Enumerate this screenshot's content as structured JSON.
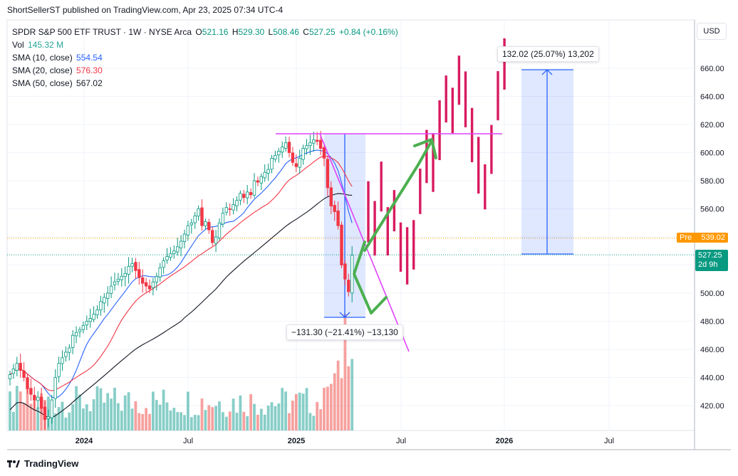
{
  "publisher_line": "ShortSellerST published on TradingView.com, Apr 23, 2025 07:34 UTC-4",
  "header": {
    "symbol": "SPDR S&P 500 ETF TRUST · 1W · NYSE Arca",
    "o_label": "O",
    "o": "521.16",
    "h_label": "H",
    "h": "529.30",
    "l_label": "L",
    "l": "508.46",
    "c_label": "C",
    "c": "527.25",
    "change": "+0.84 (+0.16%)"
  },
  "indicators": [
    {
      "label": "Vol",
      "value": "145.32 M",
      "color": "#26a69a"
    },
    {
      "label": "SMA (10, close)",
      "value": "554.54",
      "color": "#2962ff"
    },
    {
      "label": "SMA (20, close)",
      "value": "576.30",
      "color": "#f23645"
    },
    {
      "label": "SMA (50, close)",
      "value": "567.02",
      "color": "#131722"
    }
  ],
  "currency_button": "USD",
  "price_tags": {
    "pre_label": "Pre",
    "pre_value": "539.02",
    "pre_color": "#ff9800",
    "last_value": "527.25",
    "last_countdown": "2d 9h",
    "last_color": "#089981"
  },
  "measures": [
    {
      "text": "132.02 (25.07%) 13,202"
    },
    {
      "text": "−131.30 (−21.41%) −13,130"
    }
  ],
  "footer_brand": "TradingView",
  "colors": {
    "up": "#26a69a",
    "down": "#ef5350",
    "projection": "#d81b60",
    "trend": "#e040fb",
    "arrow": "#4caf50",
    "box": "#dbe4fb",
    "box_line": "#2962ff"
  },
  "chart_data": {
    "type": "candlestick",
    "timeframe": "1W",
    "y_axis": {
      "ticks": [
        420,
        440,
        460,
        480,
        500,
        520,
        540,
        560,
        580,
        600,
        620,
        640,
        660
      ],
      "range": [
        400,
        676
      ]
    },
    "x_axis": {
      "ticks": [
        "2024",
        "Jul",
        "2025",
        "Jul",
        "2026",
        "Jul"
      ]
    },
    "series": [
      {
        "name": "SPY weekly closes (approx.)",
        "values": [
          442,
          446,
          450,
          445,
          440,
          432,
          428,
          424,
          426,
          418,
          410,
          412,
          424,
          440,
          450,
          454,
          458,
          461,
          470,
          472,
          474,
          477,
          480,
          482,
          485,
          488,
          494,
          497,
          500,
          505,
          508,
          510,
          512,
          514,
          519,
          521,
          516,
          511,
          507,
          505,
          503,
          508,
          512,
          518,
          523,
          526,
          528,
          530,
          533,
          537,
          542,
          548,
          550,
          555,
          560,
          548,
          551,
          545,
          536,
          540,
          550,
          557,
          561,
          560,
          563,
          566,
          571,
          568,
          572,
          570,
          580,
          579,
          583,
          586,
          588,
          596,
          598,
          601,
          604,
          607,
          600,
          593,
          590,
          596,
          603,
          605,
          607,
          609,
          608,
          603,
          596,
          575,
          562,
          558,
          548,
          520,
          510,
          501,
          527
        ]
      },
      {
        "name": "projection",
        "values": [
          560,
          548,
          575,
          545,
          560,
          535,
          530,
          540,
          575,
          600,
          592,
          618,
          640,
          630,
          655,
          640,
          610,
          590,
          575,
          600,
          640,
          660
        ]
      }
    ],
    "annotations": [
      "132.02 (25.07%) 13,202",
      "−131.30 (−21.41%) −13,130"
    ]
  }
}
